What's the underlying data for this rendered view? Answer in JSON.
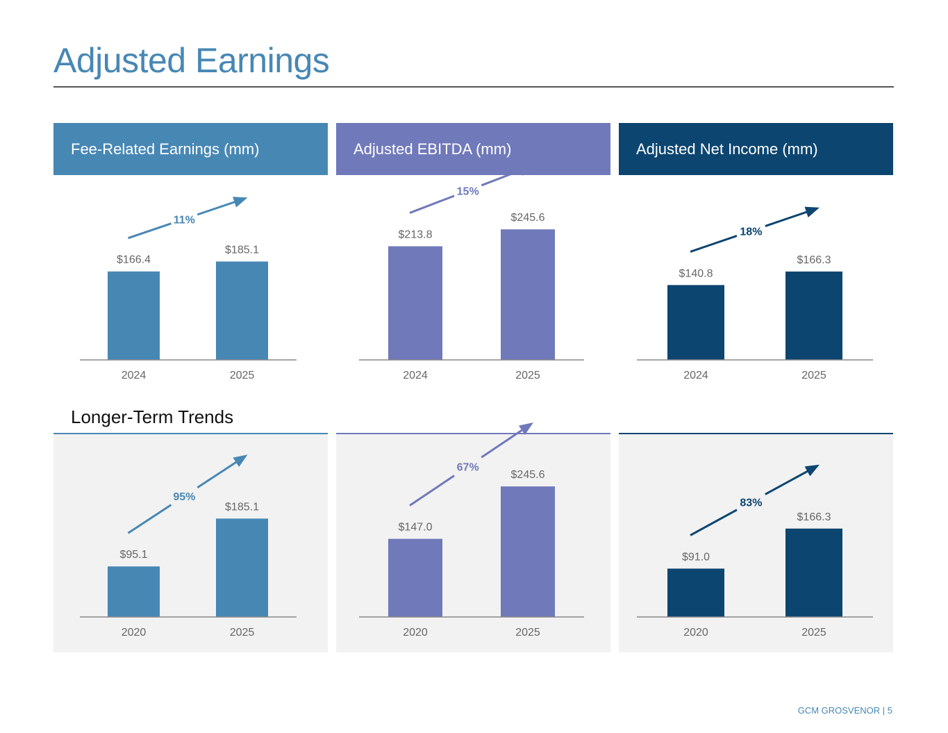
{
  "page": {
    "title": "Adjusted Earnings",
    "section_label": "Longer-Term Trends",
    "footer": "GCM GROSVENOR | 5"
  },
  "panels": [
    {
      "header": "Fee-Related Earnings (mm)",
      "color": "#4787b4"
    },
    {
      "header": "Adjusted EBITDA (mm)",
      "color": "#7079b9"
    },
    {
      "header": "Adjusted Net Income (mm)",
      "color": "#0c4570"
    }
  ],
  "colors": {
    "axis": "#888888",
    "value_label": "#666666",
    "trend_bg": "#f2f2f2"
  },
  "chart_data": [
    {
      "type": "bar",
      "title": "Fee-Related Earnings (mm)",
      "period": "recent",
      "categories": [
        "2024",
        "2025"
      ],
      "values": [
        166.4,
        185.1
      ],
      "labels": [
        "$166.4",
        "$185.1"
      ],
      "growth": "11%",
      "color": "#4787b4"
    },
    {
      "type": "bar",
      "title": "Adjusted EBITDA (mm)",
      "period": "recent",
      "categories": [
        "2024",
        "2025"
      ],
      "values": [
        213.8,
        245.6
      ],
      "labels": [
        "$213.8",
        "$245.6"
      ],
      "growth": "15%",
      "color": "#7079b9"
    },
    {
      "type": "bar",
      "title": "Adjusted Net Income (mm)",
      "period": "recent",
      "categories": [
        "2024",
        "2025"
      ],
      "values": [
        140.8,
        166.3
      ],
      "labels": [
        "$140.8",
        "$166.3"
      ],
      "growth": "18%",
      "color": "#0c4570"
    },
    {
      "type": "bar",
      "title": "Fee-Related Earnings (mm)",
      "period": "longer-term",
      "categories": [
        "2020",
        "2025"
      ],
      "values": [
        95.1,
        185.1
      ],
      "labels": [
        "$95.1",
        "$185.1"
      ],
      "growth": "95%",
      "color": "#4787b4"
    },
    {
      "type": "bar",
      "title": "Adjusted EBITDA (mm)",
      "period": "longer-term",
      "categories": [
        "2020",
        "2025"
      ],
      "values": [
        147.0,
        245.6
      ],
      "labels": [
        "$147.0",
        "$245.6"
      ],
      "growth": "67%",
      "color": "#7079b9"
    },
    {
      "type": "bar",
      "title": "Adjusted Net Income (mm)",
      "period": "longer-term",
      "categories": [
        "2020",
        "2025"
      ],
      "values": [
        91.0,
        166.3
      ],
      "labels": [
        "$91.0",
        "$166.3"
      ],
      "growth": "83%",
      "color": "#0c4570"
    }
  ]
}
